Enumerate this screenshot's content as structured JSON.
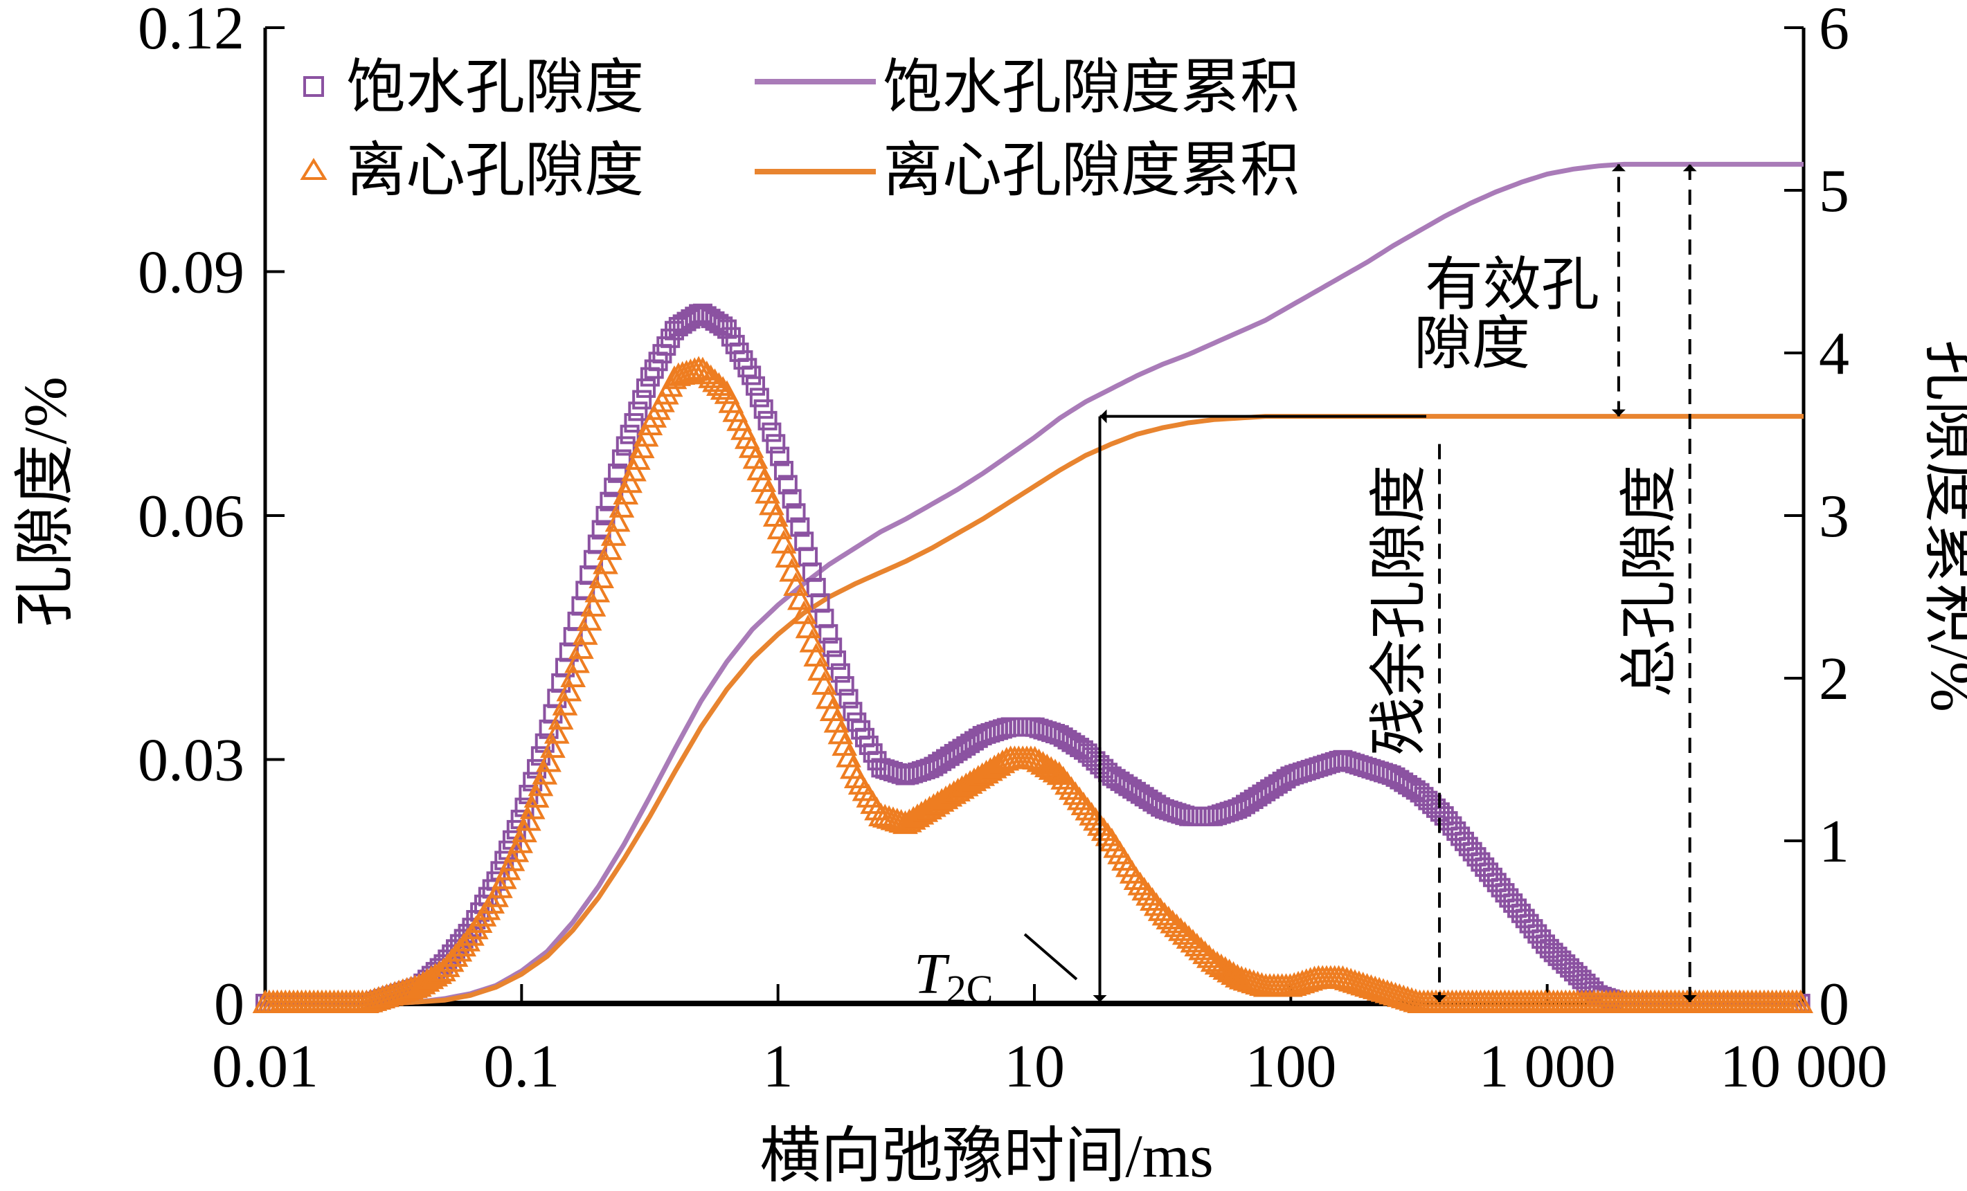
{
  "chart_data": {
    "type": "scatter+line",
    "title": "",
    "xlabel": "横向弛豫时间/ms",
    "ylabel_left": "孔隙度/%",
    "ylabel_right": "孔隙度累积/%",
    "xscale": "log",
    "xlim": [
      0.01,
      10000
    ],
    "ylim_left": [
      0,
      0.12
    ],
    "ylim_right": [
      0,
      6
    ],
    "grid": false,
    "x_ticks": [
      0.01,
      0.1,
      1,
      10,
      100,
      1000,
      10000
    ],
    "x_tick_labels": [
      "0.01",
      "0.1",
      "1",
      "10",
      "100",
      "1 000",
      "10 000"
    ],
    "y_left_ticks": [
      0,
      0.03,
      0.06,
      0.09,
      0.12
    ],
    "y_left_tick_labels": [
      "0",
      "0.03",
      "0.06",
      "0.09",
      "0.12"
    ],
    "y_right_ticks": [
      0,
      1,
      2,
      3,
      4,
      5,
      6
    ],
    "y_right_tick_labels": [
      "0",
      "1",
      "2",
      "3",
      "4",
      "5",
      "6"
    ],
    "legend_position": "top-left",
    "log10_x": [
      -2.0,
      -1.9,
      -1.8,
      -1.7,
      -1.6,
      -1.5,
      -1.4,
      -1.3,
      -1.2,
      -1.1,
      -1.0,
      -0.9,
      -0.8,
      -0.7,
      -0.6,
      -0.5,
      -0.4,
      -0.3,
      -0.2,
      -0.1,
      0.0,
      0.1,
      0.2,
      0.3,
      0.4,
      0.5,
      0.6,
      0.7,
      0.8,
      0.9,
      1.0,
      1.1,
      1.2,
      1.3,
      1.4,
      1.5,
      1.6,
      1.7,
      1.8,
      1.9,
      2.0,
      2.1,
      2.2,
      2.3,
      2.4,
      2.5,
      2.6,
      2.7,
      2.8,
      2.9,
      3.0,
      3.1,
      3.2,
      3.3,
      3.4,
      3.5,
      3.6,
      3.7,
      3.8,
      3.9,
      4.0
    ],
    "series": [
      {
        "name": "饱水孔隙度",
        "kind": "marker-square",
        "axis": "left",
        "color": "#8B52A1",
        "values": [
          0,
          0,
          0,
          0,
          0,
          0.001,
          0.002,
          0.005,
          0.009,
          0.015,
          0.023,
          0.033,
          0.045,
          0.057,
          0.068,
          0.077,
          0.083,
          0.085,
          0.083,
          0.077,
          0.068,
          0.057,
          0.045,
          0.035,
          0.029,
          0.028,
          0.029,
          0.031,
          0.033,
          0.034,
          0.034,
          0.033,
          0.031,
          0.028,
          0.026,
          0.024,
          0.023,
          0.023,
          0.024,
          0.026,
          0.028,
          0.029,
          0.03,
          0.029,
          0.028,
          0.026,
          0.023,
          0.019,
          0.015,
          0.011,
          0.007,
          0.004,
          0.001,
          0,
          0,
          0,
          0,
          0,
          0,
          0,
          0
        ]
      },
      {
        "name": "离心孔隙度",
        "kind": "marker-triangle",
        "axis": "left",
        "color": "#EE7D21",
        "values": [
          0,
          0,
          0,
          0,
          0,
          0.001,
          0.002,
          0.004,
          0.008,
          0.013,
          0.02,
          0.029,
          0.04,
          0.051,
          0.062,
          0.071,
          0.077,
          0.078,
          0.075,
          0.068,
          0.059,
          0.048,
          0.037,
          0.028,
          0.023,
          0.022,
          0.024,
          0.026,
          0.028,
          0.03,
          0.03,
          0.028,
          0.024,
          0.02,
          0.015,
          0.011,
          0.008,
          0.005,
          0.003,
          0.002,
          0.002,
          0.003,
          0.003,
          0.002,
          0.001,
          0,
          0,
          0,
          0,
          0,
          0,
          0,
          0,
          0,
          0,
          0,
          0,
          0,
          0,
          0,
          0
        ]
      },
      {
        "name": "饱水孔隙度累积",
        "kind": "line",
        "axis": "right",
        "color": "#A97BB8",
        "values": [
          0,
          0,
          0,
          0,
          0,
          0,
          0.01,
          0.03,
          0.06,
          0.11,
          0.2,
          0.32,
          0.5,
          0.72,
          0.98,
          1.27,
          1.57,
          1.86,
          2.1,
          2.3,
          2.45,
          2.58,
          2.7,
          2.8,
          2.9,
          2.98,
          3.07,
          3.16,
          3.26,
          3.37,
          3.48,
          3.6,
          3.7,
          3.78,
          3.86,
          3.93,
          3.99,
          4.06,
          4.13,
          4.2,
          4.29,
          4.38,
          4.47,
          4.56,
          4.66,
          4.75,
          4.84,
          4.92,
          4.99,
          5.05,
          5.1,
          5.13,
          5.15,
          5.16,
          5.16,
          5.16,
          5.16,
          5.16,
          5.16,
          5.16,
          5.16
        ]
      },
      {
        "name": "离心孔隙度累积",
        "kind": "line",
        "axis": "right",
        "color": "#E8842F",
        "values": [
          0,
          0,
          0,
          0,
          0,
          0,
          0.01,
          0.02,
          0.05,
          0.1,
          0.18,
          0.29,
          0.45,
          0.65,
          0.89,
          1.15,
          1.43,
          1.7,
          1.93,
          2.12,
          2.27,
          2.4,
          2.5,
          2.58,
          2.65,
          2.72,
          2.8,
          2.89,
          2.98,
          3.08,
          3.18,
          3.28,
          3.37,
          3.44,
          3.5,
          3.54,
          3.57,
          3.59,
          3.6,
          3.61,
          3.61,
          3.61,
          3.61,
          3.61,
          3.61,
          3.61,
          3.61,
          3.61,
          3.61,
          3.61,
          3.61,
          3.61,
          3.61,
          3.61,
          3.61,
          3.61,
          3.61,
          3.61,
          3.61,
          3.61,
          3.61
        ]
      }
    ],
    "annotations": {
      "t2c": {
        "label_main": "T",
        "label_sub": "2C",
        "x_ms": 18,
        "level_right": 3.61
      },
      "effective": {
        "label_line1": "有效孔",
        "label_line2": "隙度",
        "x_ms": 1900,
        "from_right": 3.61,
        "to_right": 5.16
      },
      "residual": {
        "label": "残余孔隙度",
        "x_ms": 380
      },
      "total": {
        "label": "总孔隙度",
        "x_ms": 3600
      }
    }
  }
}
